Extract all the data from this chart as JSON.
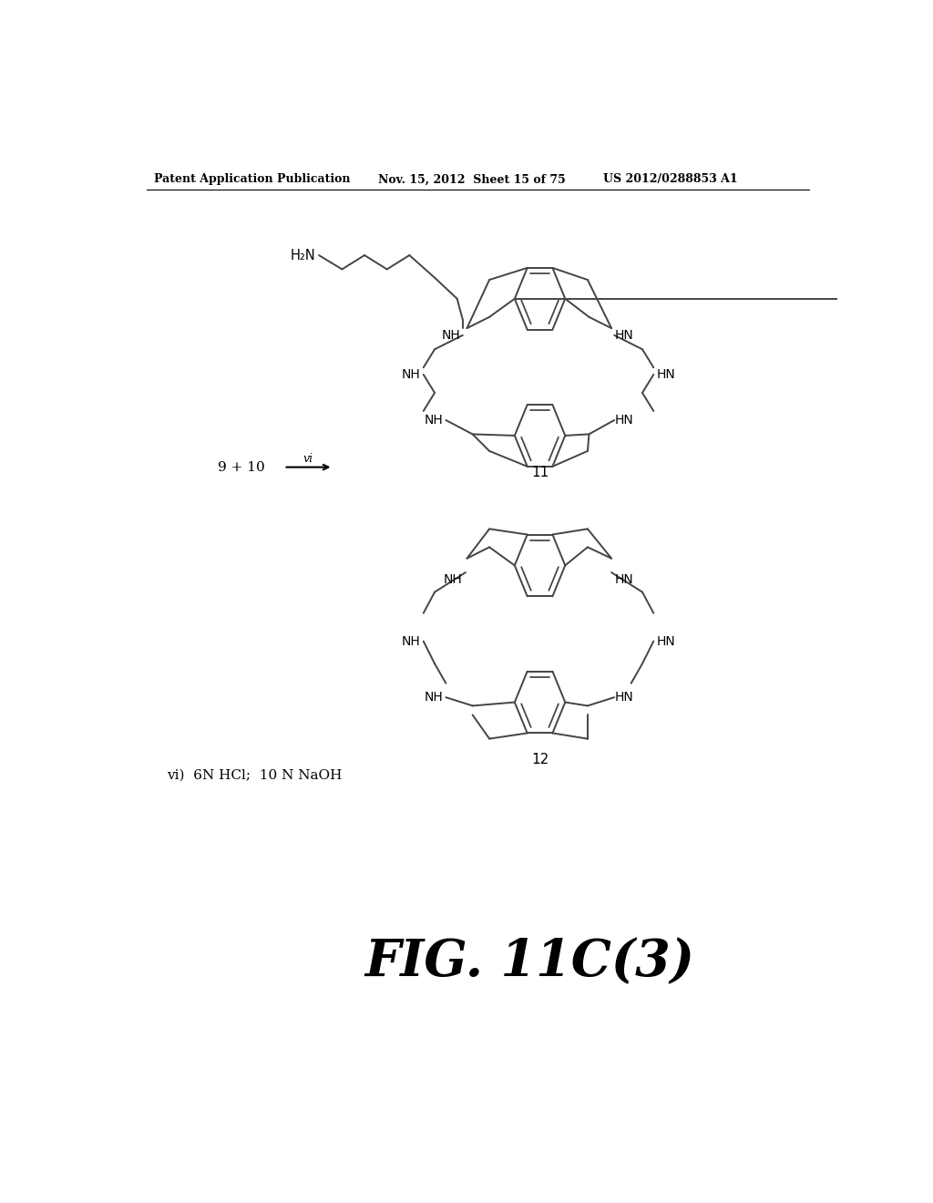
{
  "bg_color": "#ffffff",
  "header_left": "Patent Application Publication",
  "header_mid": "Nov. 15, 2012  Sheet 15 of 75",
  "header_right": "US 2012/0288853 A1",
  "fig_label": "FIG. 11C(3)",
  "reaction_label": "9 + 10",
  "reaction_arrow_label": "vi",
  "compound11_label": "11",
  "compound12_label": "12",
  "reagent_label": "vi)  6N HCl;  10 N NaOH",
  "lw": 1.4,
  "lc": "#444444"
}
